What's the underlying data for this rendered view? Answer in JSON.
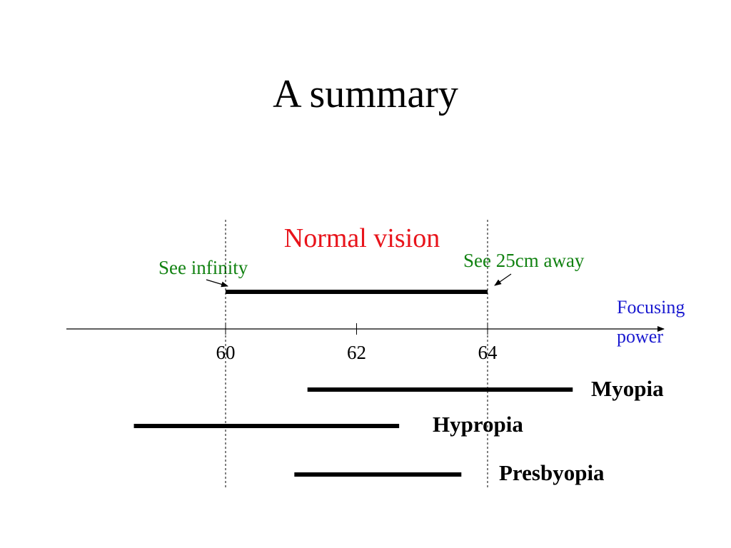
{
  "slide": {
    "title": "A summary"
  },
  "labels": {
    "normal_vision": "Normal vision",
    "see_infinity": "See infinity",
    "see_near": "See 25cm away",
    "axis_name_line1": "Focusing",
    "axis_name_line2": "power"
  },
  "colors": {
    "normal": "#e8141b",
    "note": "#128212",
    "axis_label": "#1a1ad0",
    "bar": "#000000"
  },
  "chart_data": {
    "type": "range-bar",
    "axis": {
      "label": "Focusing power",
      "ticks": [
        60,
        62,
        64
      ]
    },
    "ranges": [
      {
        "name": "Normal vision",
        "from": 60,
        "to": 64
      },
      {
        "name": "Myopia",
        "from": 61.25,
        "to": 65.3
      },
      {
        "name": "Hypropia",
        "from": 58.6,
        "to": 62.65
      },
      {
        "name": "Presbyopia",
        "from": 61.05,
        "to": 63.6
      }
    ]
  }
}
